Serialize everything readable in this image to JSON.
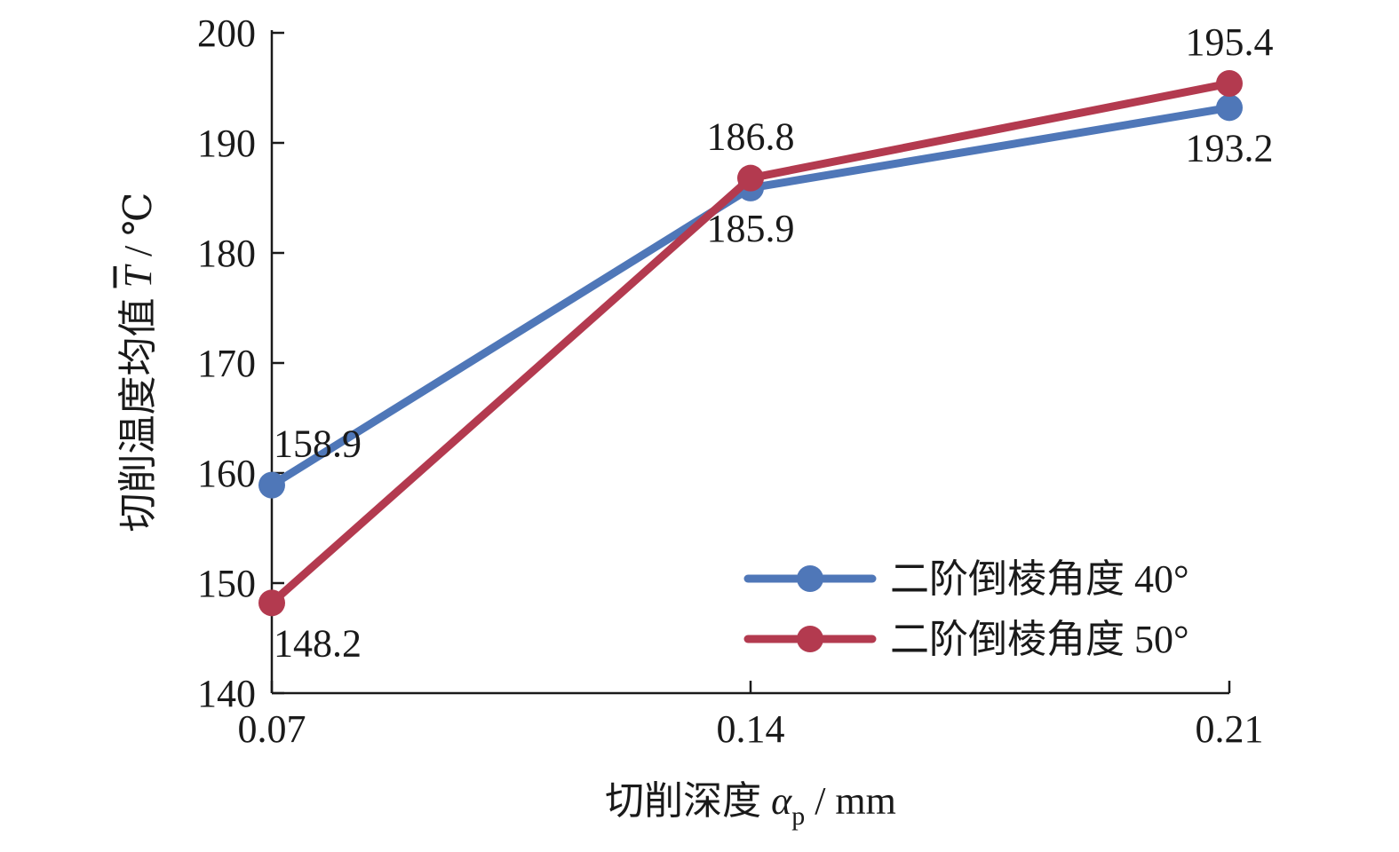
{
  "chart_data": {
    "type": "line",
    "x": [
      "0.07",
      "0.14",
      "0.21"
    ],
    "series": [
      {
        "name": "二阶倒棱角度 40°",
        "values": [
          158.9,
          185.9,
          193.2
        ],
        "color": "#4f77b8"
      },
      {
        "name": "二阶倒棱角度 50°",
        "values": [
          148.2,
          186.8,
          195.4
        ],
        "color": "#b33a4f"
      }
    ],
    "data_labels": [
      {
        "series": 0,
        "index": 0,
        "text": "158.9",
        "side": "above"
      },
      {
        "series": 0,
        "index": 1,
        "text": "185.9",
        "side": "below"
      },
      {
        "series": 0,
        "index": 2,
        "text": "193.2",
        "side": "below"
      },
      {
        "series": 1,
        "index": 0,
        "text": "148.2",
        "side": "below"
      },
      {
        "series": 1,
        "index": 1,
        "text": "186.8",
        "side": "above"
      },
      {
        "series": 1,
        "index": 2,
        "text": "195.4",
        "side": "above"
      }
    ],
    "xlabel": {
      "prefix": "切削深度 ",
      "symbol": "α",
      "subscript": "p",
      "suffix": " / mm"
    },
    "ylabel": {
      "prefix": "切削温度均值 ",
      "symbol": "T",
      "suffix": " / ℃"
    },
    "xlim": [
      0.07,
      0.21
    ],
    "ylim": [
      140,
      200
    ],
    "yticks": [
      140,
      150,
      160,
      170,
      180,
      190,
      200
    ],
    "xticks": [
      "0.07",
      "0.14",
      "0.21"
    ],
    "grid": false,
    "legend_position": "bottom-right"
  }
}
